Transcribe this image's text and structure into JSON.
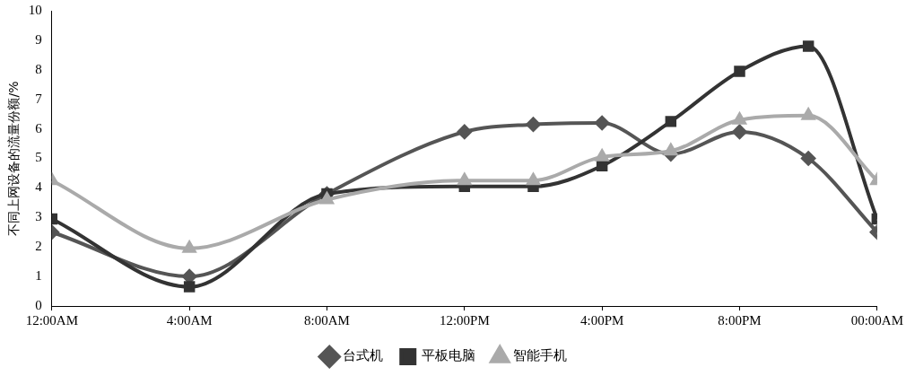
{
  "chart_data": {
    "type": "line",
    "ylabel": "不同上网设备的流量份额/%",
    "xlim": [
      0,
      24
    ],
    "xticks": [
      {
        "value": 0,
        "label": "12:00AM"
      },
      {
        "value": 4,
        "label": "4:00AM"
      },
      {
        "value": 8,
        "label": "8:00AM"
      },
      {
        "value": 12,
        "label": "12:00PM"
      },
      {
        "value": 16,
        "label": "4:00PM"
      },
      {
        "value": 20,
        "label": "8:00PM"
      },
      {
        "value": 24,
        "label": "00:00AM"
      }
    ],
    "ylim": [
      0,
      10
    ],
    "yticks": [
      0,
      1,
      2,
      3,
      4,
      5,
      6,
      7,
      8,
      9,
      10
    ],
    "grid": false,
    "legend": "bottom",
    "x": [
      0,
      4,
      8,
      12,
      14,
      16,
      18,
      20,
      22,
      24
    ],
    "series": [
      {
        "name": "台式机",
        "color": "#555555",
        "marker": "diamond",
        "values": [
          2.5,
          1.0,
          3.8,
          5.9,
          6.15,
          6.2,
          5.15,
          5.9,
          5.0,
          2.5
        ]
      },
      {
        "name": "平板电脑",
        "color": "#333333",
        "marker": "square",
        "values": [
          2.95,
          0.65,
          3.8,
          4.05,
          4.05,
          4.75,
          6.25,
          7.95,
          8.8,
          2.95
        ]
      },
      {
        "name": "智能手机",
        "color": "#aaaaaa",
        "marker": "triangle",
        "values": [
          4.25,
          1.95,
          3.6,
          4.25,
          4.25,
          5.05,
          5.25,
          6.3,
          6.45,
          4.25
        ]
      }
    ]
  }
}
